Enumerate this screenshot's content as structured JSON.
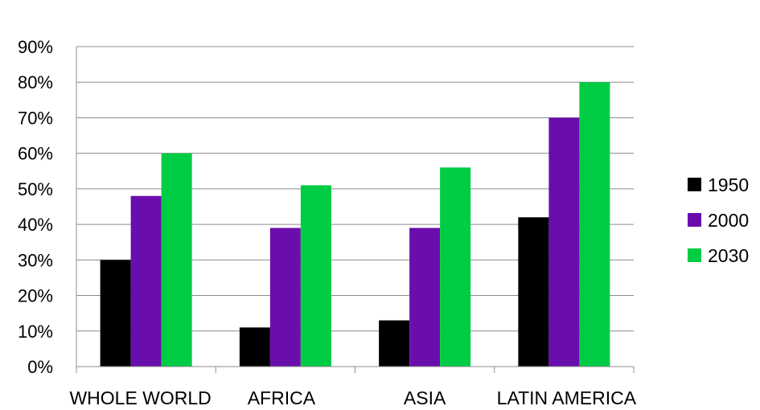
{
  "chart_data": {
    "type": "bar",
    "categories": [
      "WHOLE WORLD",
      "AFRICA",
      "ASIA",
      "LATIN AMERICA"
    ],
    "series": [
      {
        "name": "1950",
        "color": "#000000",
        "values": [
          30,
          11,
          13,
          42
        ]
      },
      {
        "name": "2000",
        "color": "#6a0dad",
        "values": [
          48,
          39,
          39,
          70
        ]
      },
      {
        "name": "2030",
        "color": "#00cc44",
        "values": [
          60,
          51,
          56,
          80
        ]
      }
    ],
    "y_ticks": [
      "0%",
      "10%",
      "20%",
      "30%",
      "40%",
      "50%",
      "60%",
      "70%",
      "80%",
      "90%"
    ],
    "ylim": [
      0,
      90
    ],
    "grid": true,
    "legend": "right"
  }
}
